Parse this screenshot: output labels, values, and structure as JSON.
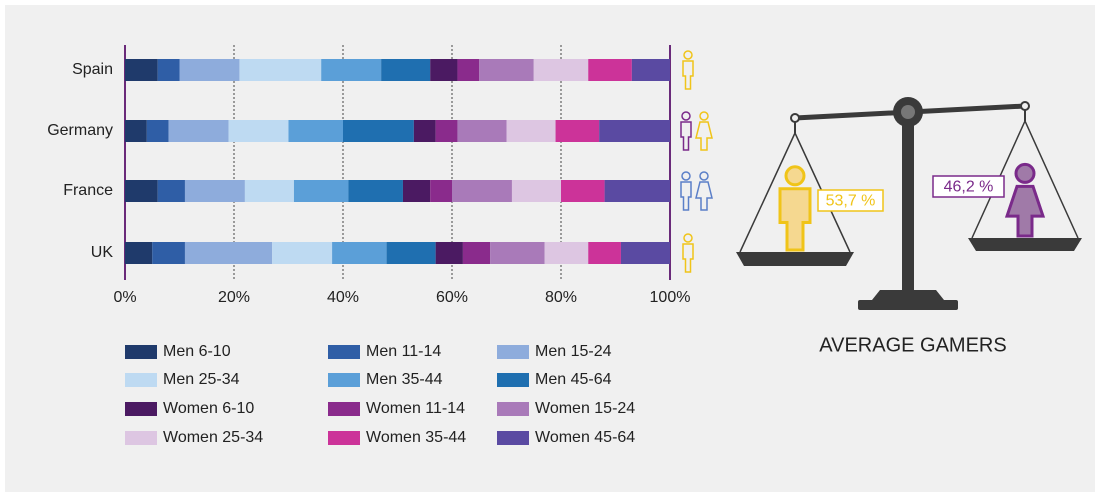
{
  "chart_data": [
    {
      "type": "stacked-barh",
      "categories": [
        "Spain",
        "Germany",
        "France",
        "UK"
      ],
      "series": [
        {
          "name": "Men 6-10",
          "color": "#1f3a6b",
          "values": [
            6,
            4,
            6,
            5
          ]
        },
        {
          "name": "Men 11-14",
          "color": "#2f5ea6",
          "values": [
            4,
            4,
            5,
            6
          ]
        },
        {
          "name": "Men 15-24",
          "color": "#8eacdc",
          "values": [
            11,
            11,
            11,
            16
          ]
        },
        {
          "name": "Men 25-34",
          "color": "#bedaf2",
          "values": [
            15,
            11,
            9,
            11
          ]
        },
        {
          "name": "Men 35-44",
          "color": "#5b9fd8",
          "values": [
            11,
            10,
            10,
            10
          ]
        },
        {
          "name": "Men 45-64",
          "color": "#1f6fb0",
          "values": [
            9,
            13,
            10,
            9
          ]
        },
        {
          "name": "Women 6-10",
          "color": "#4b1a62",
          "values": [
            5,
            4,
            5,
            5
          ]
        },
        {
          "name": "Women 11-14",
          "color": "#8a2b8c",
          "values": [
            4,
            4,
            4,
            5
          ]
        },
        {
          "name": "Women 15-24",
          "color": "#a97ab9",
          "values": [
            10,
            9,
            11,
            10
          ]
        },
        {
          "name": "Women 25-34",
          "color": "#ddc6e2",
          "values": [
            10,
            9,
            9,
            8
          ]
        },
        {
          "name": "Women 35-44",
          "color": "#cc3399",
          "values": [
            8,
            8,
            8,
            6
          ]
        },
        {
          "name": "Women 45-64",
          "color": "#5a4aa2",
          "values": [
            7,
            13,
            12,
            9
          ]
        }
      ],
      "xlim": [
        0,
        100
      ],
      "xticks": [
        {
          "value": 0,
          "label": "0%"
        },
        {
          "value": 20,
          "label": "20%"
        },
        {
          "value": 40,
          "label": "40%"
        },
        {
          "value": 60,
          "label": "60%"
        },
        {
          "value": 80,
          "label": "80%"
        },
        {
          "value": 100,
          "label": "100%"
        }
      ],
      "grid": true
    },
    {
      "type": "balance",
      "title": "AVERAGE GAMERS",
      "values": [
        53.7,
        46.2
      ],
      "value_labels": [
        "53,7 %",
        "46,2 %"
      ],
      "colors": [
        "#f0c419",
        "#7a2a8a"
      ]
    }
  ]
}
